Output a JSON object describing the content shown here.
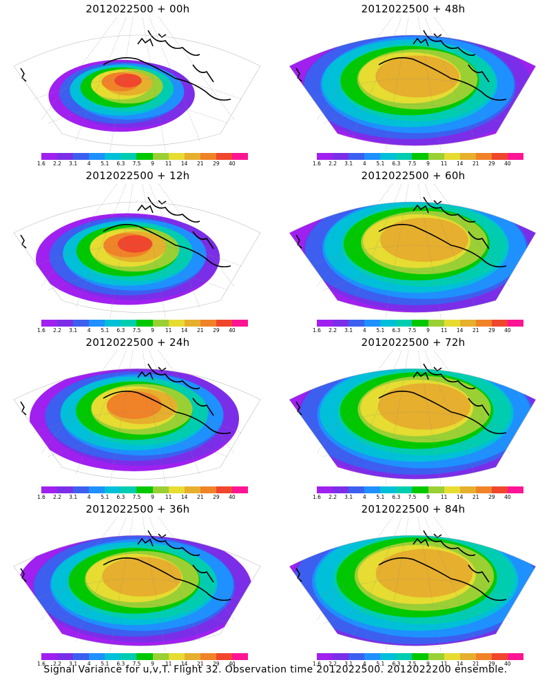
{
  "panels": [
    {
      "title": "2012022500  +  00h"
    },
    {
      "title": "2012022500  +  48h"
    },
    {
      "title": "2012022500  +  12h"
    },
    {
      "title": "2012022500  +  60h"
    },
    {
      "title": "2012022500  +  24h"
    },
    {
      "title": "2012022500  +  72h"
    },
    {
      "title": "2012022500  +  36h"
    },
    {
      "title": "2012022500  +  84h"
    }
  ],
  "legend": {
    "labels": [
      "1.6",
      "2.2",
      "3.1",
      "4",
      "5.1",
      "6.3",
      "7.5",
      "9",
      "11",
      "14",
      "21",
      "29",
      "40"
    ],
    "colors": [
      "#a020f0",
      "#7b2ee8",
      "#3c5ff0",
      "#1e90ff",
      "#00bfd8",
      "#00cdb0",
      "#00c800",
      "#9ad034",
      "#e6dc32",
      "#e6af2d",
      "#f08228",
      "#f0462d",
      "#ff1493"
    ]
  },
  "footer": {
    "caption": "Signal Variance for u,v,T. Flight 32. Observation time 2012022500. 2012022200 ensemble."
  }
}
